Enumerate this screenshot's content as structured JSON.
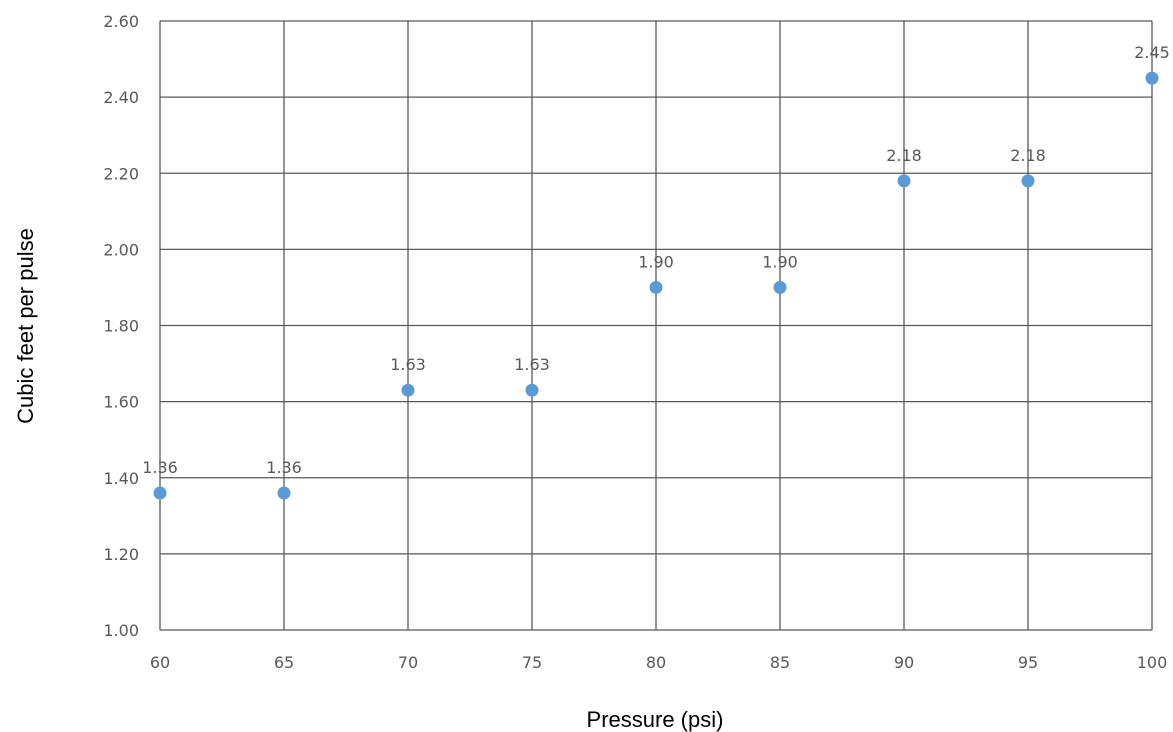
{
  "chart_data": {
    "type": "scatter",
    "title": "",
    "xlabel": "Pressure (psi)",
    "ylabel": "Cubic feet per pulse",
    "xlim": [
      60,
      100
    ],
    "ylim": [
      1.0,
      2.6
    ],
    "x_ticks": [
      "60",
      "65",
      "70",
      "75",
      "80",
      "85",
      "90",
      "95",
      "100"
    ],
    "y_ticks": [
      "1.00",
      "1.20",
      "1.40",
      "1.60",
      "1.80",
      "2.00",
      "2.20",
      "2.40",
      "2.60"
    ],
    "grid": true,
    "legend": "none",
    "series": [
      {
        "color": "#5b9bd5",
        "points": [
          {
            "x": 60,
            "y": 1.36,
            "label": "1.36"
          },
          {
            "x": 65,
            "y": 1.36,
            "label": "1.36"
          },
          {
            "x": 70,
            "y": 1.63,
            "label": "1.63"
          },
          {
            "x": 75,
            "y": 1.63,
            "label": "1.63"
          },
          {
            "x": 80,
            "y": 1.9,
            "label": "1.90"
          },
          {
            "x": 85,
            "y": 1.9,
            "label": "1.90"
          },
          {
            "x": 90,
            "y": 2.18,
            "label": "2.18"
          },
          {
            "x": 95,
            "y": 2.18,
            "label": "2.18"
          },
          {
            "x": 100,
            "y": 2.45,
            "label": "2.45"
          }
        ]
      }
    ]
  }
}
